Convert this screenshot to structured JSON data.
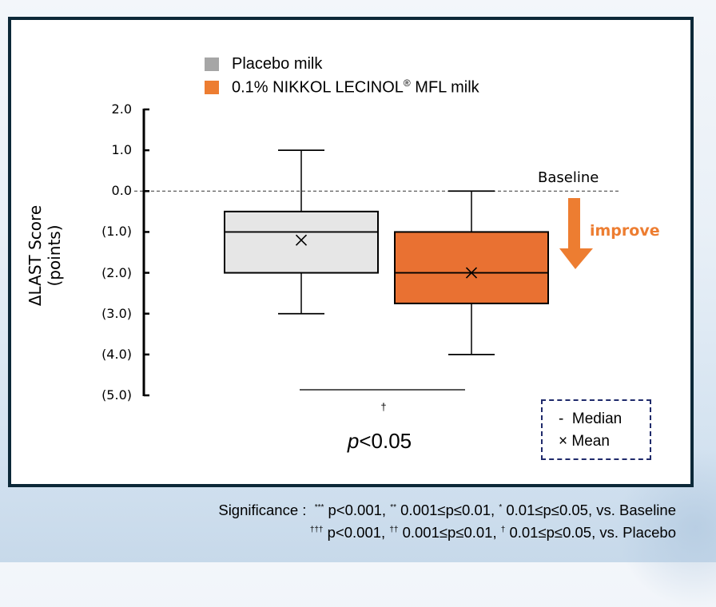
{
  "chart_data": {
    "type": "box",
    "title": "",
    "xlabel": "",
    "ylabel": "ΔLAST Score (points)",
    "ylim": [
      -5.0,
      2.0
    ],
    "yticks": [
      2.0,
      1.0,
      0.0,
      -1.0,
      -2.0,
      -3.0,
      -4.0,
      -5.0
    ],
    "ytick_labels": [
      "2.0",
      "1.0",
      "0.0",
      "(1.0)",
      "(2.0)",
      "(3.0)",
      "(4.0)",
      "(5.0)"
    ],
    "grid": false,
    "legend_position": "top-left",
    "series": [
      {
        "name": "Placebo milk",
        "color": "#a6a6a6",
        "fill": "#e6e6e6",
        "whisker_max": 1.0,
        "q3": -0.5,
        "median": -1.0,
        "mean": -1.2,
        "q1": -2.0,
        "whisker_min": -3.0
      },
      {
        "name": "0.1% NIKKOL LECINOL® MFL milk",
        "color": "#ed7d31",
        "fill": "#e97132",
        "whisker_max": 0.0,
        "q3": -1.0,
        "median": -2.0,
        "mean": -2.0,
        "q1": -2.75,
        "whisker_min": -4.0
      }
    ],
    "reference_line": {
      "value": 0.0,
      "label": "Baseline",
      "style": "dashed"
    },
    "annotations": {
      "direction_label": "improve",
      "direction_color": "#ed7d31",
      "comparison_marker": "†",
      "comparison_text_italic": "p",
      "comparison_text": "<0.05"
    }
  },
  "legend": {
    "items": [
      {
        "label": "Placebo milk",
        "label_sup": "",
        "label_tail": "",
        "color": "#a6a6a6"
      },
      {
        "label": "0.1% NIKKOL LECINOL",
        "label_sup": "®",
        "label_tail": " MFL milk",
        "color": "#ed7d31"
      }
    ]
  },
  "key": {
    "median_symbol": "-",
    "median_label": "Median",
    "mean_symbol": "×",
    "mean_label": "Mean"
  },
  "footnote": {
    "line1": {
      "prefix": "Significance :  ",
      "s3": "***",
      "t3": " p<0.001, ",
      "s2": "**",
      "t2": " 0.001≤p≤0.01, ",
      "s1": "*",
      "t1": " 0.01≤p≤0.05, vs. Baseline"
    },
    "line2": {
      "s3": "†††",
      "t3": " p<0.001, ",
      "s2": "††",
      "t2": " 0.001≤p≤0.01, ",
      "s1": "†",
      "t1": " 0.01≤p≤0.05, vs. Placebo"
    }
  }
}
